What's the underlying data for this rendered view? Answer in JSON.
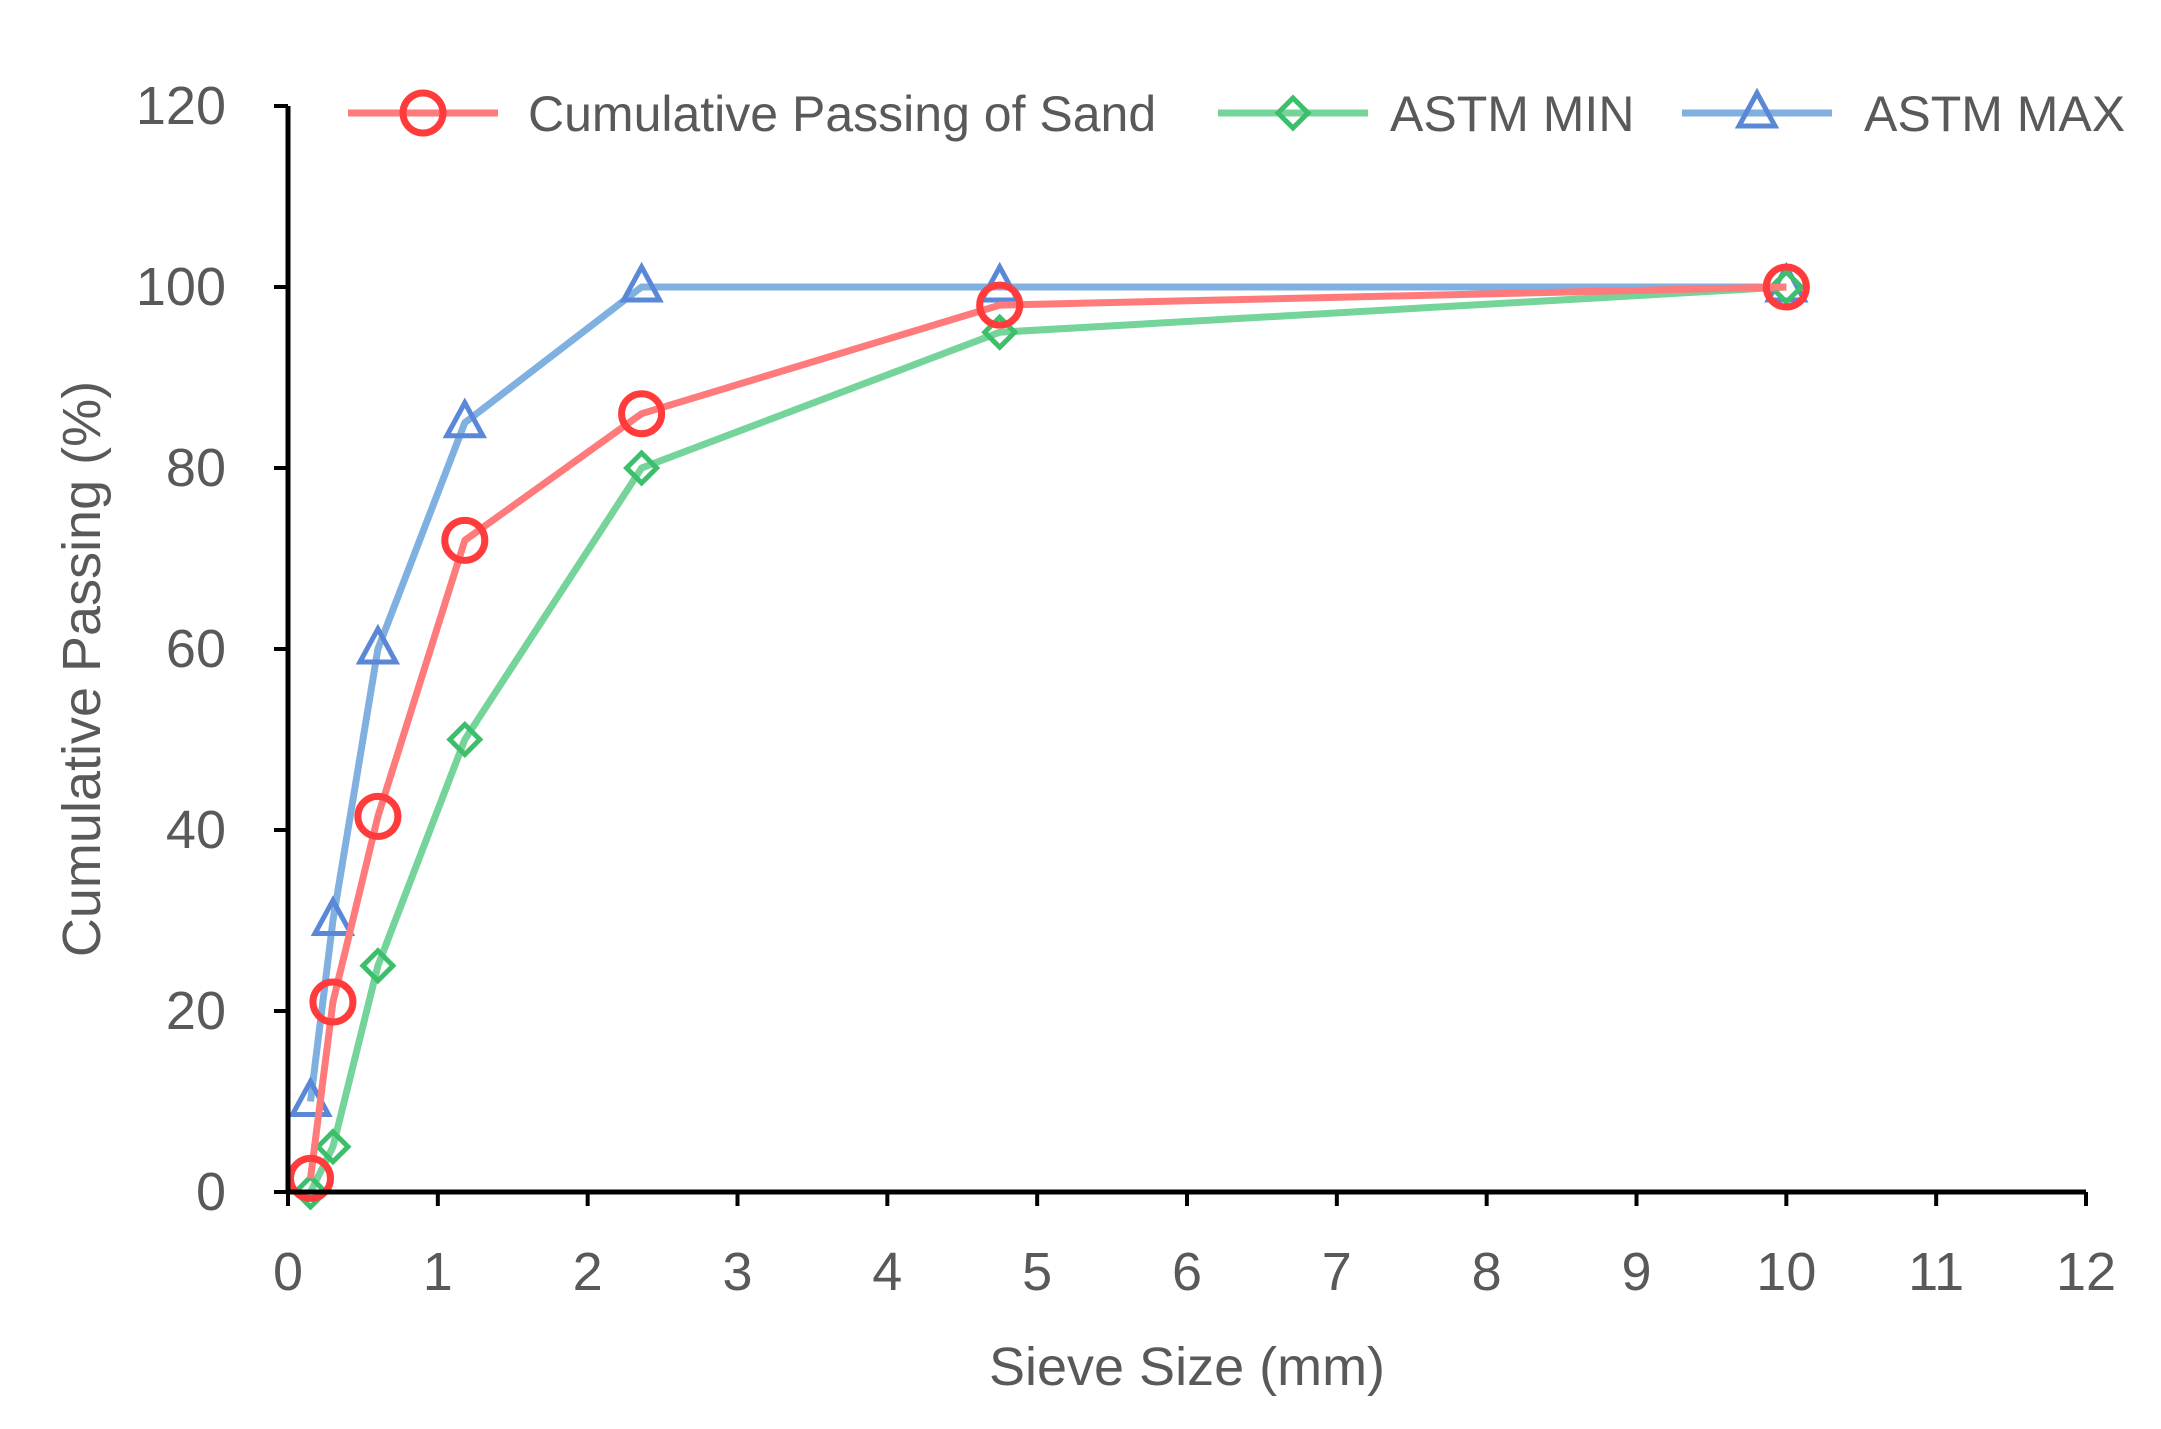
{
  "chart_data": {
    "type": "scatter",
    "title": "",
    "xlabel": "Sieve Size (mm)",
    "ylabel": "Cumulative Passing (%)",
    "xlim": [
      0,
      12
    ],
    "ylim": [
      0,
      120
    ],
    "xticks": [
      0,
      1,
      2,
      3,
      4,
      5,
      6,
      7,
      8,
      9,
      10,
      11,
      12
    ],
    "yticks": [
      0,
      20,
      40,
      60,
      80,
      100,
      120
    ],
    "grid": false,
    "legend_position": "top",
    "series": [
      {
        "name": "Cumulative Passing of Sand",
        "color": "#ff7a7a",
        "marker_color": "#ff3b3b",
        "marker": "circle",
        "x": [
          0.15,
          0.3,
          0.6,
          1.18,
          2.36,
          4.75,
          10
        ],
        "y": [
          1.5,
          21,
          41.5,
          72,
          86,
          98,
          100
        ]
      },
      {
        "name": "ASTM MIN",
        "color": "#74d49a",
        "marker_color": "#3cbf6b",
        "marker": "diamond",
        "x": [
          0.15,
          0.3,
          0.6,
          1.18,
          2.36,
          4.75,
          10
        ],
        "y": [
          0,
          5,
          25,
          50,
          80,
          95,
          100
        ]
      },
      {
        "name": "ASTM MAX",
        "color": "#7fb0e0",
        "marker_color": "#5b88d6",
        "marker": "triangle",
        "x": [
          0.15,
          0.3,
          0.6,
          1.18,
          2.36,
          4.75,
          10
        ],
        "y": [
          10,
          30,
          60,
          85,
          100,
          100,
          100
        ]
      }
    ]
  }
}
